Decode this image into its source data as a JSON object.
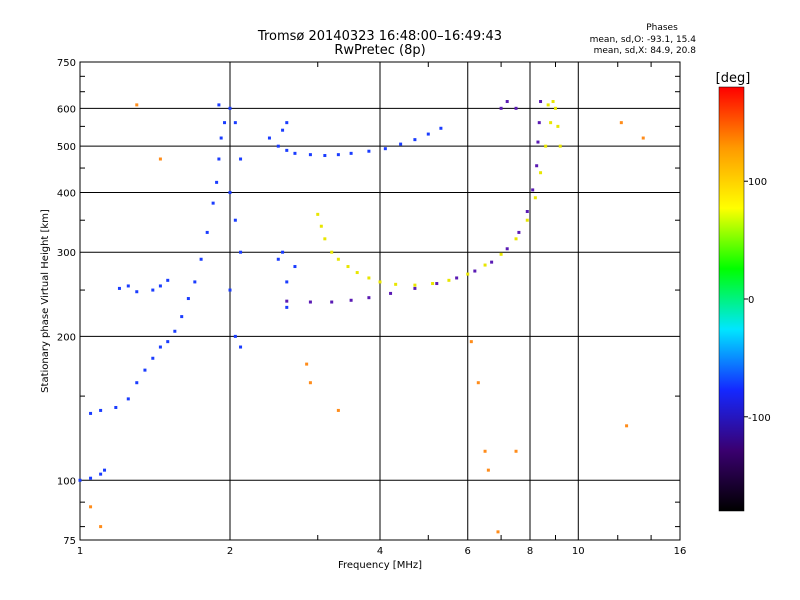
{
  "chart_data": {
    "type": "scatter",
    "title": "Tromsø 20140323 16:48:00–16:49:43",
    "subtitle": "RwPretec (8p)",
    "xlabel": "Frequency [MHz]",
    "ylabel": "Stationary phase Virtual Height [km]",
    "xscale": "log",
    "yscale": "log",
    "xlim": [
      1,
      16
    ],
    "ylim": [
      75,
      750
    ],
    "x_ticks": [
      1,
      2,
      4,
      6,
      8,
      10,
      16
    ],
    "y_ticks": [
      75,
      100,
      200,
      300,
      400,
      500,
      600,
      750
    ],
    "grid": true,
    "stats": {
      "title": "Phases",
      "line_o": "mean, sd,O: -93.1, 15.4",
      "line_x": "mean, sd,X:  84.9, 20.8"
    },
    "colorbar": {
      "label": "[deg]",
      "range": [
        -180,
        180
      ],
      "ticks": [
        100,
        0,
        -100
      ],
      "colors": [
        "#000000",
        "#3a0070",
        "#1428ff",
        "#00e6ff",
        "#00ff00",
        "#ffff00",
        "#ff9900",
        "#ff0000"
      ]
    },
    "series": [
      {
        "color_hint": "blue",
        "points": [
          [
            1.0,
            100
          ],
          [
            1.05,
            101
          ],
          [
            1.1,
            103
          ],
          [
            1.12,
            105
          ],
          [
            1.05,
            138
          ],
          [
            1.1,
            140
          ],
          [
            1.18,
            142
          ],
          [
            1.25,
            148
          ],
          [
            1.3,
            160
          ],
          [
            1.35,
            170
          ],
          [
            1.4,
            180
          ],
          [
            1.45,
            190
          ],
          [
            1.5,
            195
          ],
          [
            1.55,
            205
          ],
          [
            1.6,
            220
          ],
          [
            1.65,
            240
          ],
          [
            1.7,
            260
          ],
          [
            1.75,
            290
          ],
          [
            1.8,
            330
          ],
          [
            1.85,
            380
          ],
          [
            1.88,
            420
          ],
          [
            1.9,
            470
          ],
          [
            1.92,
            520
          ],
          [
            1.95,
            560
          ],
          [
            1.9,
            610
          ],
          [
            2.0,
            600
          ],
          [
            2.05,
            560
          ],
          [
            2.1,
            470
          ],
          [
            2.0,
            400
          ],
          [
            2.05,
            350
          ],
          [
            2.1,
            300
          ],
          [
            2.0,
            250
          ],
          [
            2.05,
            200
          ],
          [
            2.1,
            190
          ],
          [
            1.4,
            250
          ],
          [
            1.45,
            255
          ],
          [
            1.5,
            262
          ],
          [
            1.3,
            248
          ],
          [
            1.25,
            255
          ],
          [
            1.2,
            252
          ],
          [
            2.4,
            520
          ],
          [
            2.5,
            500
          ],
          [
            2.6,
            490
          ],
          [
            2.55,
            540
          ],
          [
            2.6,
            560
          ],
          [
            2.5,
            290
          ],
          [
            2.6,
            260
          ],
          [
            2.55,
            300
          ],
          [
            2.7,
            280
          ],
          [
            2.6,
            230
          ],
          [
            2.7,
            483
          ],
          [
            2.9,
            480
          ],
          [
            3.1,
            478
          ],
          [
            3.3,
            480
          ],
          [
            3.5,
            483
          ],
          [
            3.8,
            488
          ],
          [
            4.1,
            494
          ],
          [
            4.4,
            505
          ],
          [
            4.7,
            516
          ],
          [
            5.0,
            530
          ],
          [
            5.3,
            545
          ]
        ]
      },
      {
        "color_hint": "purple",
        "points": [
          [
            2.6,
            237
          ],
          [
            2.9,
            236
          ],
          [
            3.2,
            236
          ],
          [
            3.5,
            238
          ],
          [
            3.8,
            241
          ],
          [
            4.2,
            246
          ],
          [
            4.7,
            252
          ],
          [
            5.2,
            258
          ],
          [
            5.7,
            265
          ],
          [
            6.2,
            274
          ],
          [
            6.7,
            286
          ],
          [
            7.2,
            305
          ],
          [
            7.6,
            330
          ],
          [
            7.9,
            365
          ],
          [
            8.1,
            405
          ],
          [
            8.25,
            455
          ],
          [
            8.3,
            510
          ],
          [
            8.35,
            560
          ],
          [
            8.4,
            620
          ],
          [
            7.5,
            600
          ],
          [
            7.2,
            620
          ],
          [
            7.0,
            600
          ]
        ]
      },
      {
        "color_hint": "yellow",
        "points": [
          [
            3.0,
            360
          ],
          [
            3.05,
            340
          ],
          [
            3.1,
            320
          ],
          [
            3.2,
            300
          ],
          [
            3.3,
            290
          ],
          [
            3.45,
            280
          ],
          [
            3.6,
            272
          ],
          [
            3.8,
            265
          ],
          [
            4.0,
            260
          ],
          [
            4.3,
            257
          ],
          [
            4.7,
            256
          ],
          [
            5.1,
            258
          ],
          [
            5.5,
            262
          ],
          [
            6.0,
            270
          ],
          [
            6.5,
            282
          ],
          [
            7.0,
            297
          ],
          [
            7.5,
            320
          ],
          [
            7.9,
            350
          ],
          [
            8.2,
            390
          ],
          [
            8.4,
            440
          ],
          [
            8.6,
            500
          ],
          [
            8.8,
            560
          ],
          [
            8.9,
            620
          ],
          [
            8.7,
            610
          ],
          [
            9.0,
            600
          ],
          [
            9.1,
            550
          ],
          [
            9.2,
            500
          ]
        ]
      },
      {
        "color_hint": "orange",
        "points": [
          [
            1.3,
            610
          ],
          [
            1.45,
            470
          ],
          [
            2.85,
            175
          ],
          [
            2.9,
            160
          ],
          [
            3.3,
            140
          ],
          [
            6.1,
            195
          ],
          [
            6.3,
            160
          ],
          [
            6.5,
            115
          ],
          [
            6.6,
            105
          ],
          [
            6.9,
            78
          ],
          [
            7.5,
            115
          ],
          [
            12.5,
            130
          ],
          [
            13.5,
            520
          ],
          [
            12.2,
            560
          ],
          [
            1.05,
            88
          ],
          [
            1.1,
            80
          ]
        ]
      }
    ]
  }
}
